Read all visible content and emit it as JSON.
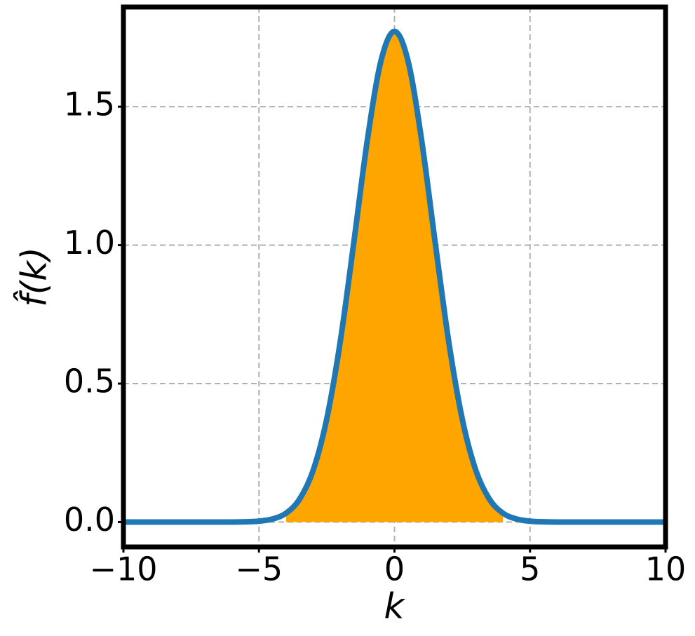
{
  "chart_data": {
    "type": "line",
    "xlabel": "k",
    "ylabel": "f̂(k)",
    "x": [
      -10,
      -9.5,
      -9,
      -8.5,
      -8,
      -7.5,
      -7,
      -6.5,
      -6,
      -5.5,
      -5,
      -4.5,
      -4,
      -3.5,
      -3,
      -2.5,
      -2,
      -1.5,
      -1,
      -0.5,
      0,
      0.5,
      1,
      1.5,
      2,
      2.5,
      3,
      3.5,
      4,
      4.5,
      5,
      5.5,
      6,
      6.5,
      7,
      7.5,
      8,
      8.5,
      9,
      9.5,
      10
    ],
    "series": [
      {
        "color": "#1f77b4",
        "values": [
          0,
          0,
          0,
          0,
          0,
          0,
          0,
          0,
          0,
          0.001,
          0.003,
          0.011,
          0.032,
          0.083,
          0.187,
          0.372,
          0.652,
          1.01,
          1.38,
          1.665,
          1.772,
          1.665,
          1.38,
          1.01,
          0.652,
          0.372,
          0.187,
          0.083,
          0.032,
          0.011,
          0.003,
          0.001,
          0,
          0,
          0,
          0,
          0,
          0,
          0,
          0,
          0
        ]
      }
    ],
    "fill": {
      "xlim": [
        -4,
        4
      ],
      "color": "#ffa500"
    },
    "xlim": [
      -10,
      10
    ],
    "xticks": [
      {
        "value": -10,
        "label": "−10"
      },
      {
        "value": -5,
        "label": "−5"
      },
      0,
      5,
      10
    ],
    "ylim": [
      -0.09,
      1.86
    ],
    "yticks": [
      {
        "value": 0,
        "label": "0.0"
      },
      0.5,
      {
        "value": 1,
        "label": "1.0"
      },
      1.5
    ],
    "grid": true
  }
}
